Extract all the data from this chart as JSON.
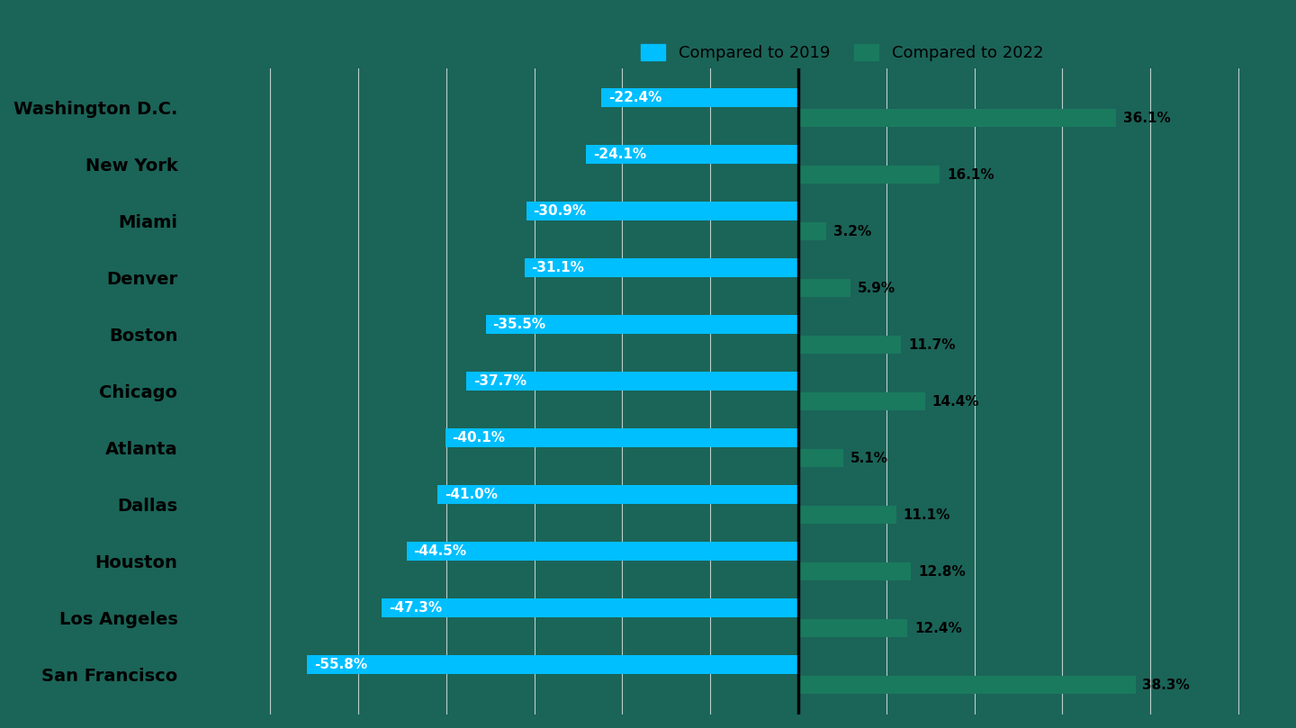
{
  "cities": [
    "Washington D.C.",
    "New York",
    "Miami",
    "Denver",
    "Boston",
    "Chicago",
    "Atlanta",
    "Dallas",
    "Houston",
    "Los Angeles",
    "San Francisco"
  ],
  "values_2019": [
    -22.4,
    -24.1,
    -30.9,
    -31.1,
    -35.5,
    -37.7,
    -40.1,
    -41.0,
    -44.5,
    -47.3,
    -55.8
  ],
  "values_2022": [
    36.1,
    16.1,
    3.2,
    5.9,
    11.7,
    14.4,
    5.1,
    11.1,
    12.8,
    12.4,
    38.3
  ],
  "color_2019": "#00BFFF",
  "color_2022": "#1A7A5E",
  "background_left": "#1A5C50",
  "background_right": "#1A5C50",
  "plot_bg": "#1B6458",
  "text_color_city": "#000000",
  "text_color_val19": "#FFFFFF",
  "text_color_val22": "#000000",
  "grid_color": "#FFFFFF",
  "bar_height": 0.32,
  "xlim_left": -70,
  "xlim_right": 55,
  "legend_label_2019": "Compared to 2019",
  "legend_label_2022": "Compared to 2022",
  "grid_xticks": [
    -60,
    -50,
    -40,
    -30,
    -20,
    -10,
    0,
    10,
    20,
    30,
    40,
    50
  ],
  "city_fontsize": 14,
  "value_fontsize": 11,
  "legend_fontsize": 13
}
